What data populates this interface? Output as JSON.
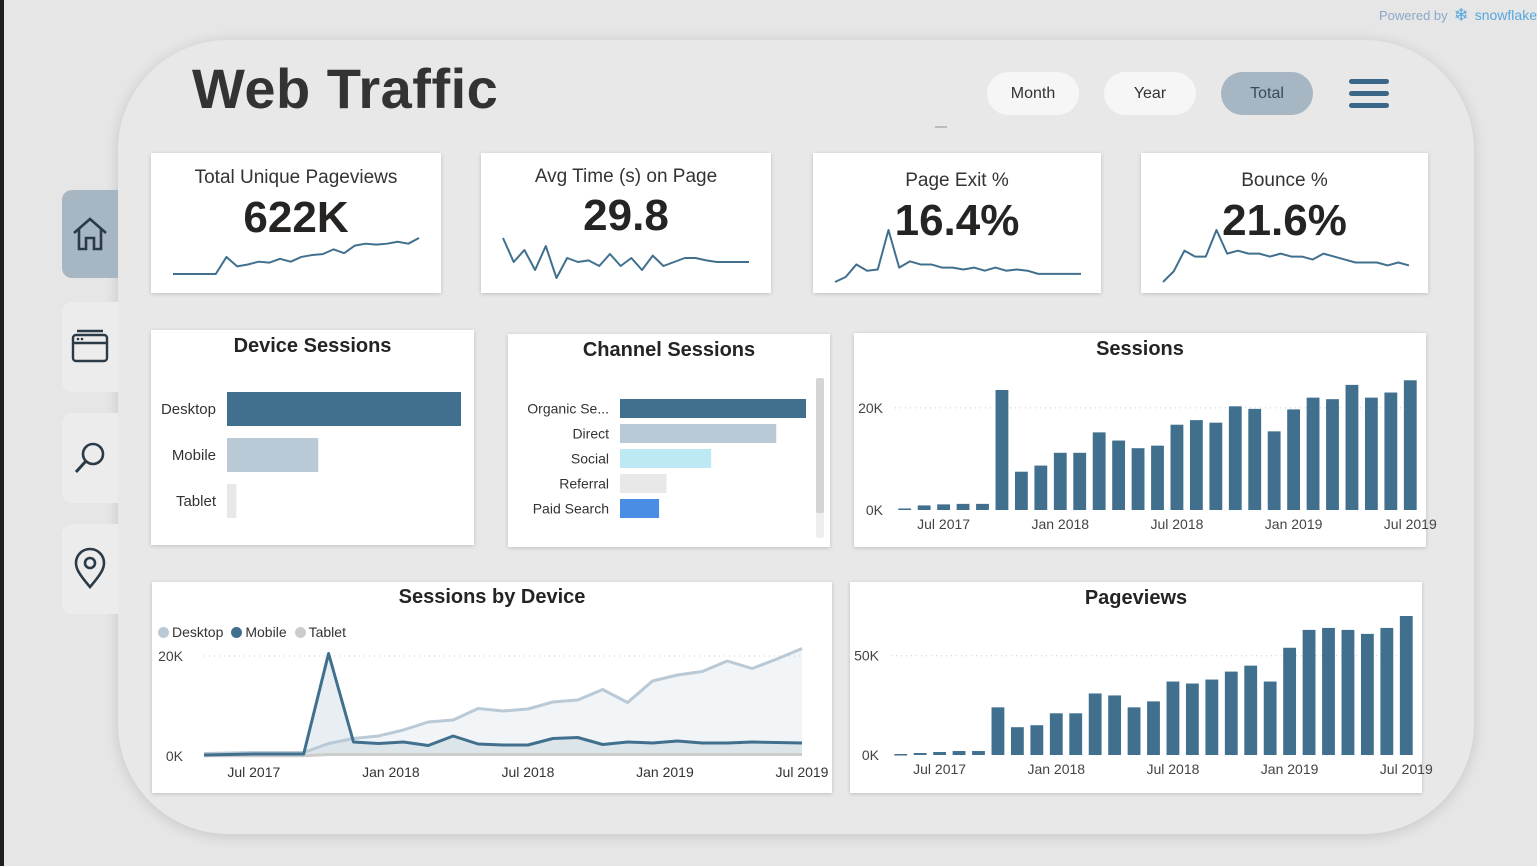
{
  "powered": {
    "text": "Powered by",
    "brand": "snowflake"
  },
  "title": "Web Traffic",
  "filters": [
    {
      "label": "Month",
      "active": false
    },
    {
      "label": "Year",
      "active": false
    },
    {
      "label": "Total",
      "active": true
    }
  ],
  "nav": [
    {
      "name": "home-icon",
      "active": true
    },
    {
      "name": "browser-icon",
      "active": false
    },
    {
      "name": "search-icon",
      "active": false
    },
    {
      "name": "location-pin-icon",
      "active": false
    }
  ],
  "kpis": [
    {
      "label": "Total Unique Pageviews",
      "value": "622K",
      "spark": [
        2,
        2,
        2,
        2,
        2,
        20,
        10,
        12,
        15,
        14,
        18,
        15,
        20,
        22,
        23,
        28,
        24,
        32,
        34,
        33,
        34,
        36,
        34,
        40
      ]
    },
    {
      "label": "Avg Time (s) on Page",
      "value": "29.8",
      "spark": [
        60,
        30,
        45,
        20,
        50,
        10,
        35,
        30,
        32,
        25,
        40,
        25,
        35,
        20,
        38,
        25,
        30,
        35,
        35,
        32,
        30,
        30,
        30,
        30
      ]
    },
    {
      "label": "Page Exit %",
      "value": "16.4%",
      "spark": [
        2,
        10,
        30,
        20,
        22,
        85,
        25,
        35,
        30,
        30,
        25,
        25,
        22,
        25,
        20,
        25,
        20,
        22,
        20,
        15,
        15,
        15,
        15,
        15
      ]
    },
    {
      "label": "Bounce %",
      "value": "21.6%",
      "spark": [
        2,
        20,
        55,
        45,
        45,
        90,
        50,
        55,
        50,
        50,
        45,
        50,
        45,
        45,
        40,
        50,
        45,
        40,
        35,
        35,
        35,
        30,
        35,
        30
      ]
    }
  ],
  "device_sessions": {
    "title": "Device Sessions",
    "colors": [
      "#41708f",
      "#b9c9d6",
      "#e8e8e8"
    ],
    "chart_data": {
      "type": "bar",
      "orientation": "horizontal",
      "categories": [
        "Desktop",
        "Mobile",
        "Tablet"
      ],
      "values": [
        100,
        39,
        4
      ]
    }
  },
  "channel_sessions": {
    "title": "Channel Sessions",
    "colors": [
      "#41708f",
      "#b9c9d6",
      "#bde9f5",
      "#e8e8e8",
      "#4a8de5"
    ],
    "chart_data": {
      "type": "bar",
      "orientation": "horizontal",
      "categories": [
        "Organic Se...",
        "Direct",
        "Social",
        "Referral",
        "Paid Search"
      ],
      "values": [
        100,
        84,
        49,
        25,
        21
      ]
    }
  },
  "sessions": {
    "title": "Sessions",
    "color": "#41708f",
    "chart_data": {
      "type": "bar",
      "x_ticks": [
        "Jul 2017",
        "Jan 2018",
        "Jul 2018",
        "Jan 2019",
        "Jul 2019"
      ],
      "y_ticks": [
        "0K",
        "20K"
      ],
      "ylim": [
        0,
        28000
      ],
      "values": [
        300,
        900,
        1100,
        1200,
        1200,
        23500,
        7500,
        8700,
        11200,
        11200,
        15200,
        13600,
        12100,
        12600,
        16700,
        17600,
        17100,
        20300,
        19800,
        15400,
        19700,
        22000,
        21700,
        24500,
        22000,
        23000,
        25400
      ]
    }
  },
  "sessions_by_device": {
    "title": "Sessions by Device",
    "legend": [
      {
        "label": "Desktop",
        "color": "#b9c9d6"
      },
      {
        "label": "Mobile",
        "color": "#41708f"
      },
      {
        "label": "Tablet",
        "color": "#cccccc"
      }
    ],
    "chart_data": {
      "type": "line",
      "x_ticks": [
        "Jul 2017",
        "Jan 2018",
        "Jul 2018",
        "Jan 2019",
        "Jul 2019"
      ],
      "y_ticks": [
        "0K",
        "20K"
      ],
      "ylim": [
        0,
        26000
      ],
      "series": [
        {
          "name": "Desktop",
          "values": [
            500,
            600,
            700,
            700,
            700,
            2500,
            3500,
            4000,
            5200,
            6800,
            7200,
            9500,
            9000,
            9400,
            10800,
            11200,
            13300,
            10700,
            15000,
            16200,
            16900,
            19000,
            17500,
            19400,
            21500
          ]
        },
        {
          "name": "Mobile",
          "values": [
            200,
            300,
            400,
            400,
            400,
            20500,
            2800,
            2500,
            2800,
            2100,
            4000,
            2400,
            2200,
            2200,
            3500,
            3700,
            2300,
            2800,
            2600,
            3000,
            2600,
            2600,
            2800,
            2700,
            2600
          ]
        },
        {
          "name": "Tablet",
          "values": [
            50,
            50,
            50,
            50,
            50,
            300,
            300,
            300,
            300,
            300,
            300,
            300,
            300,
            300,
            300,
            300,
            300,
            300,
            300,
            300,
            300,
            300,
            300,
            300,
            300
          ]
        }
      ]
    }
  },
  "pageviews": {
    "title": "Pageviews",
    "color": "#41708f",
    "chart_data": {
      "type": "bar",
      "x_ticks": [
        "Jul 2017",
        "Jan 2018",
        "Jul 2018",
        "Jan 2019",
        "Jul 2019"
      ],
      "y_ticks": [
        "0K",
        "50K"
      ],
      "ylim": [
        0,
        70000
      ],
      "values": [
        500,
        1000,
        1500,
        2000,
        2000,
        24000,
        14000,
        15000,
        21000,
        21000,
        31000,
        30000,
        24000,
        27000,
        37000,
        36000,
        38000,
        42000,
        45000,
        37000,
        54000,
        63000,
        64000,
        63000,
        61000,
        64000,
        70000
      ]
    }
  }
}
